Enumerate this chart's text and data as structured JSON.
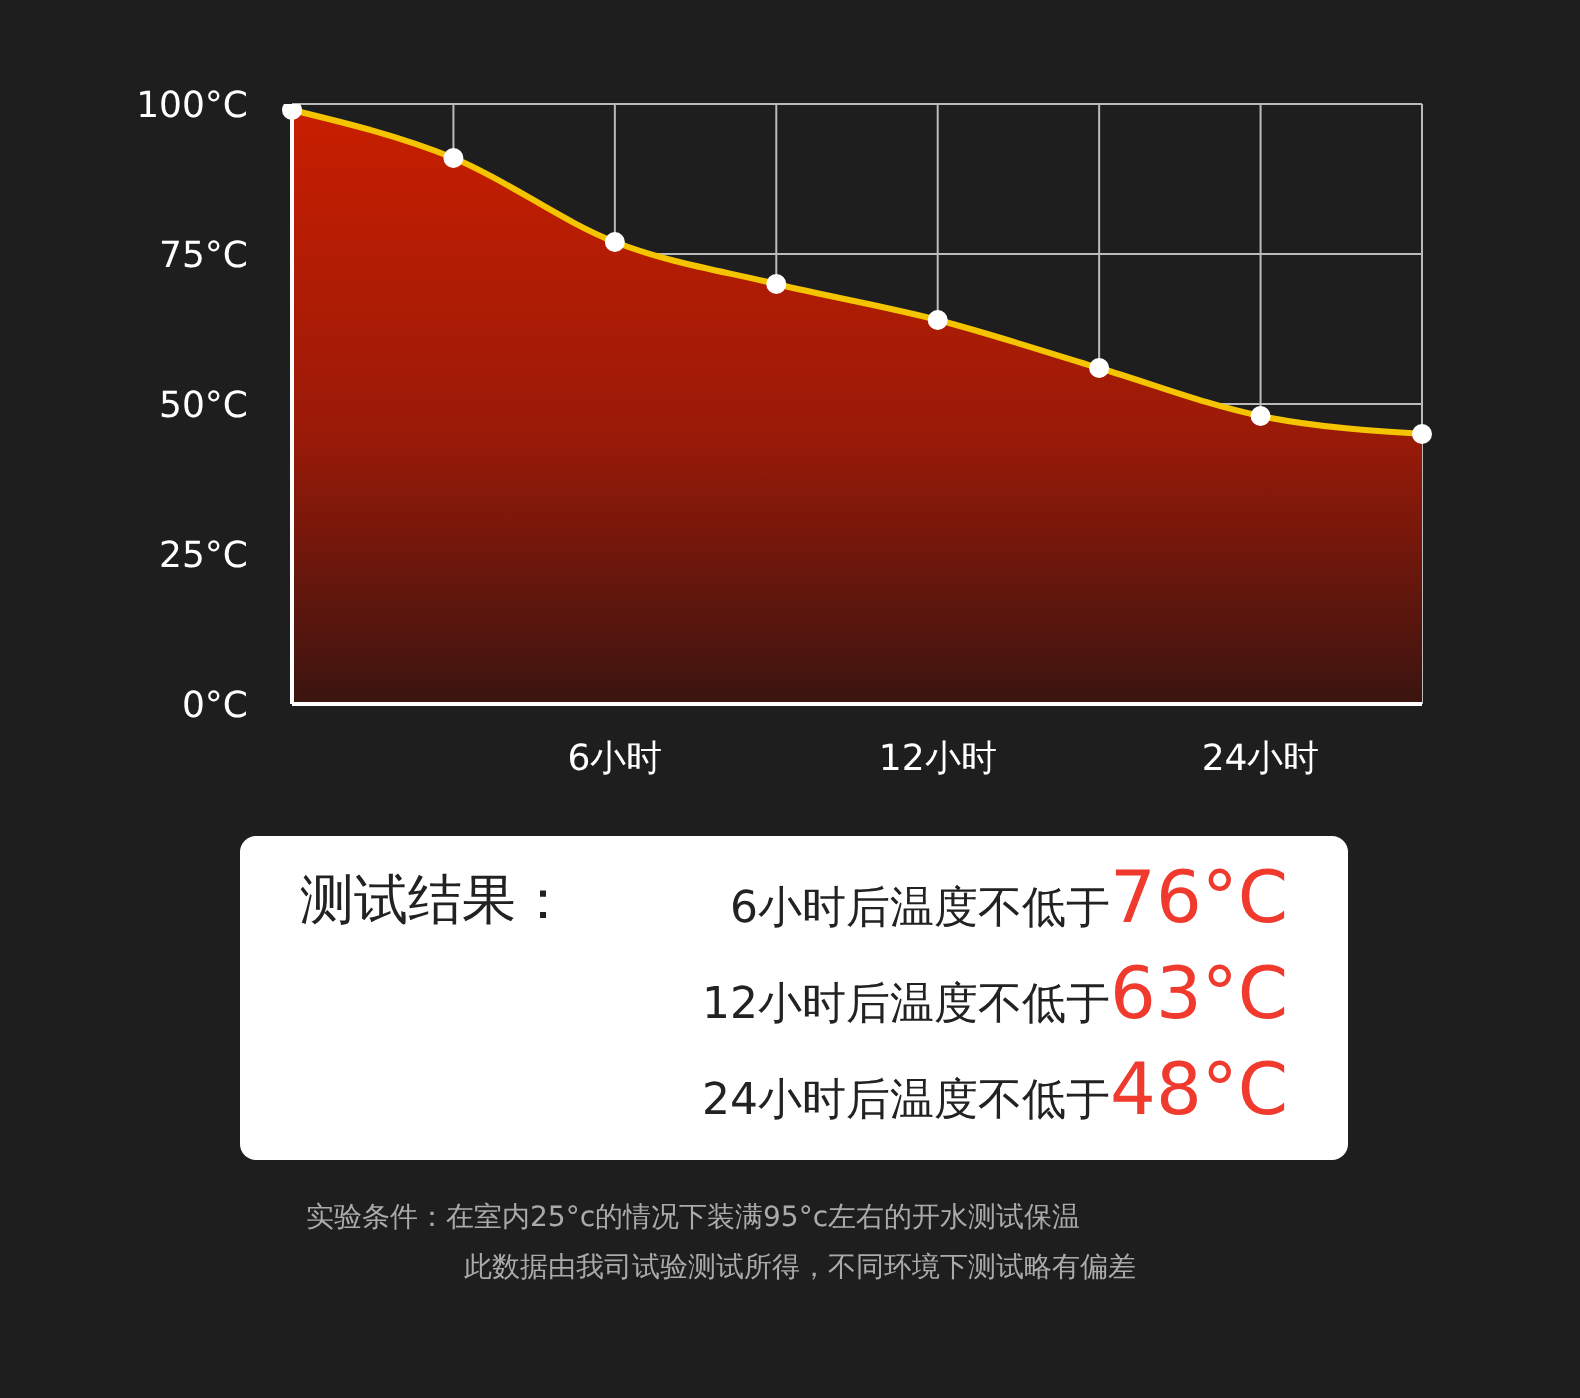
{
  "chart_data": {
    "type": "area",
    "categories": [
      null,
      null,
      "6小时",
      null,
      "12小时",
      null,
      "24小时",
      null
    ],
    "series": [
      {
        "color": "#f5c400",
        "values": [
          99,
          91,
          77,
          70,
          64,
          56,
          48,
          45
        ]
      }
    ],
    "ylim": [
      0,
      100
    ],
    "yticks": [
      {
        "value": 0,
        "label": "0°C"
      },
      {
        "value": 25,
        "label": "25°C"
      },
      {
        "value": 50,
        "label": "50°C"
      },
      {
        "value": 75,
        "label": "75°C"
      },
      {
        "value": 100,
        "label": "100°C"
      }
    ],
    "grid": true,
    "marker": "circle",
    "annotations": [
      "测试结果：",
      "6小时后温度不低于76°C",
      "12小时后温度不低于63°C",
      "24小时后温度不低于48°C",
      "实验条件：在室内25°c的情况下装满95°c左右的开水测试保温",
      "此数据由我司试验测试所得，不同环境下测试略有偏差"
    ]
  }
}
